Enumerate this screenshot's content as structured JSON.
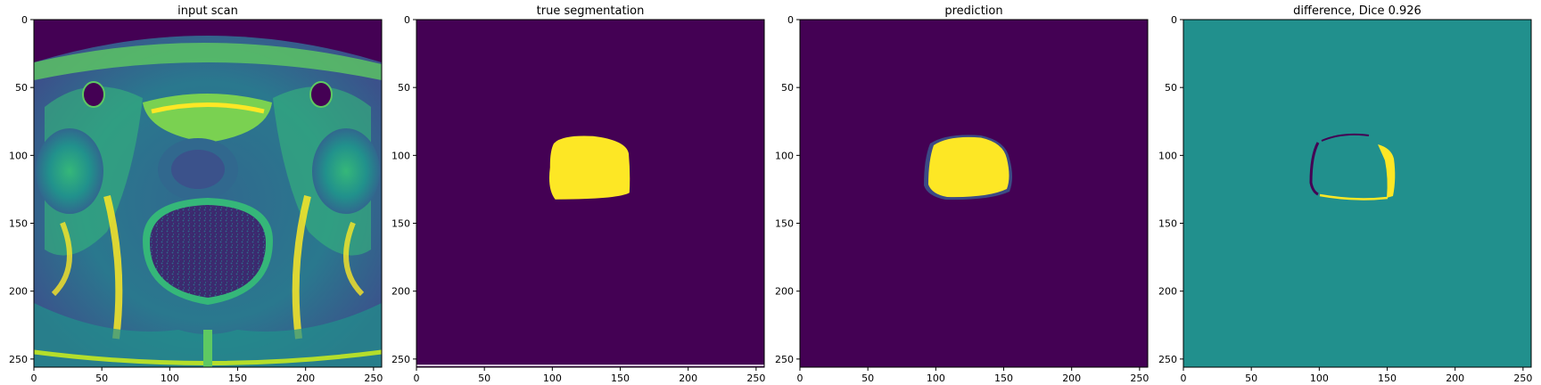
{
  "chart_data": [
    {
      "type": "heatmap",
      "title": "input scan",
      "xticks": [
        0,
        50,
        100,
        150,
        200,
        250
      ],
      "yticks": [
        0,
        50,
        100,
        150,
        200,
        250
      ],
      "xlim": [
        0,
        256
      ],
      "ylim": [
        256,
        0
      ],
      "image": "MRI axial pelvis scan",
      "colormap": "viridis"
    },
    {
      "type": "heatmap",
      "title": "true segmentation",
      "xticks": [
        0,
        50,
        100,
        150,
        200,
        250
      ],
      "yticks": [
        0,
        50,
        100,
        150,
        200,
        250
      ],
      "xlim": [
        0,
        256
      ],
      "ylim": [
        256,
        0
      ],
      "colormap": "viridis",
      "region": {
        "x_min": 99,
        "x_max": 157,
        "y_min": 88,
        "y_max": 134
      }
    },
    {
      "type": "heatmap",
      "title": "prediction",
      "xticks": [
        0,
        50,
        100,
        150,
        200,
        250
      ],
      "yticks": [
        0,
        50,
        100,
        150,
        200,
        250
      ],
      "xlim": [
        0,
        256
      ],
      "ylim": [
        256,
        0
      ],
      "colormap": "viridis",
      "region": {
        "x_min": 94,
        "x_max": 155,
        "y_min": 87,
        "y_max": 132
      }
    },
    {
      "type": "heatmap",
      "title": "difference, Dice 0.926",
      "xticks": [
        0,
        50,
        100,
        150,
        200,
        250
      ],
      "yticks": [
        0,
        50,
        100,
        150,
        200,
        250
      ],
      "xlim": [
        0,
        256
      ],
      "ylim": [
        256,
        0
      ],
      "colormap": "viridis",
      "dice": 0.926
    }
  ],
  "colors": {
    "viridis_low": "#440154",
    "viridis_mid": "#21908d",
    "viridis_high": "#fde725",
    "viridis_q1": "#3b528b",
    "viridis_q3": "#5ec962"
  }
}
